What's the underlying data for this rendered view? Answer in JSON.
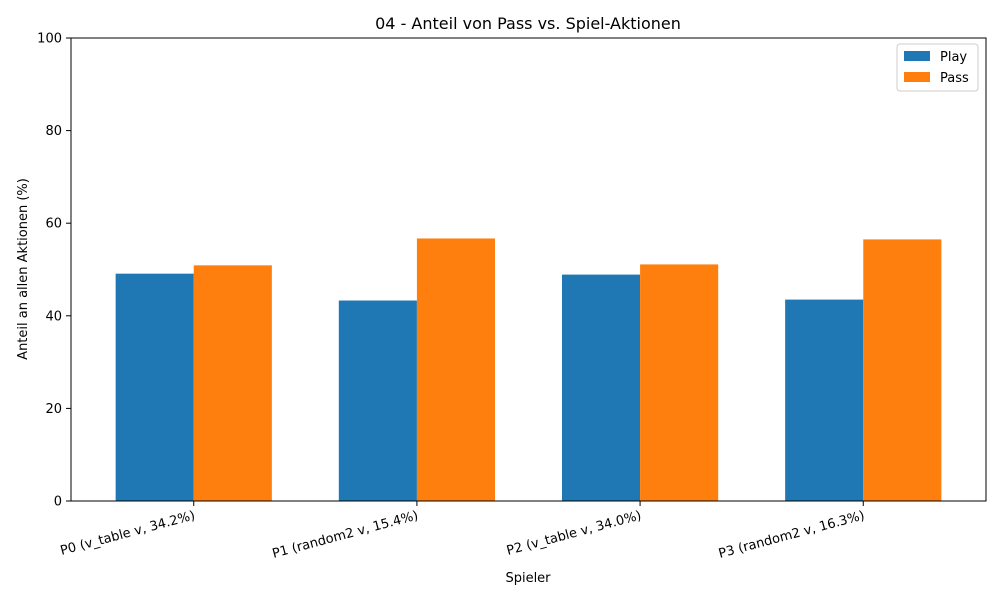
{
  "chart_data": {
    "type": "bar",
    "title": "04 - Anteil von Pass vs. Spiel-Aktionen",
    "xlabel": "Spieler",
    "ylabel": "Anteil an allen Aktionen (%)",
    "categories": [
      "P0 (v_table v, 34.2%)",
      "P1 (random2 v, 15.4%)",
      "P2 (v_table v, 34.0%)",
      "P3 (random2 v, 16.3%)"
    ],
    "series": [
      {
        "name": "Play",
        "color": "#1f77b4",
        "values": [
          49.1,
          43.3,
          48.9,
          43.5
        ]
      },
      {
        "name": "Pass",
        "color": "#ff7f0e",
        "values": [
          50.9,
          56.7,
          51.1,
          56.5
        ]
      }
    ],
    "ylim": [
      0,
      100
    ],
    "yticks": [
      "0",
      "20",
      "40",
      "60",
      "80",
      "100"
    ],
    "grid": false,
    "legend_position": "top-right"
  }
}
